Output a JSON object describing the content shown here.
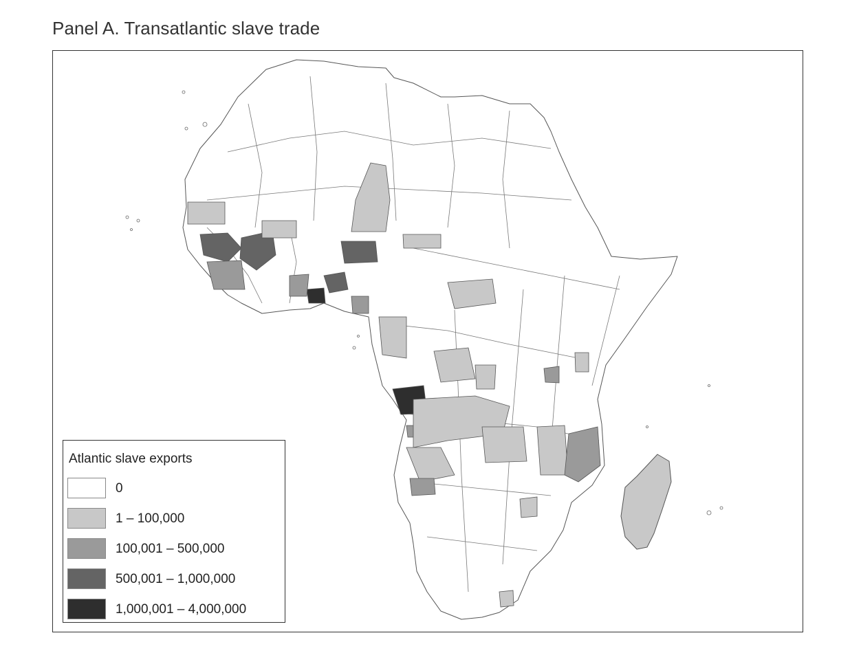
{
  "panel": {
    "title": "Panel A. Transatlantic slave trade"
  },
  "legend": {
    "title": "Atlantic slave exports",
    "items": [
      {
        "label": "0",
        "color": "#ffffff"
      },
      {
        "label": "1 – 100,000",
        "color": "#c8c8c8"
      },
      {
        "label": "100,001 – 500,000",
        "color": "#9a9a9a"
      },
      {
        "label": "500,001 – 1,000,000",
        "color": "#646464"
      },
      {
        "label": "1,000,001 – 4,000,000",
        "color": "#2e2e2e"
      }
    ]
  },
  "map": {
    "subject": "Africa ethnic homelands",
    "outline_color": "#555555"
  }
}
